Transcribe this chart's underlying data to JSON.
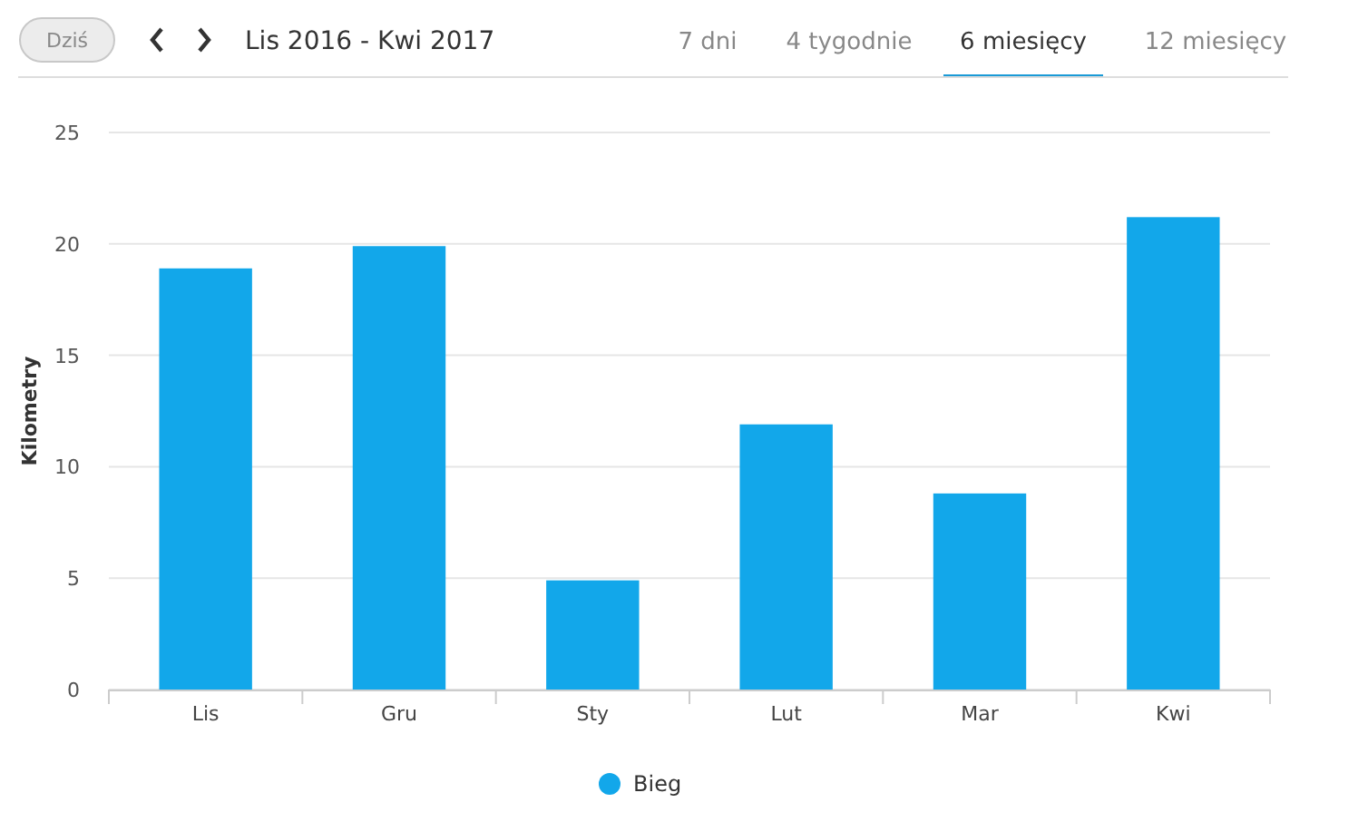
{
  "chart_data": {
    "type": "bar",
    "title": "Lis 2016 - Kwi 2017",
    "ylabel": "Kilometry",
    "categories": [
      "Lis",
      "Gru",
      "Sty",
      "Lut",
      "Mar",
      "Kwi"
    ],
    "series": [
      {
        "name": "Bieg",
        "color": "#12a7ea",
        "values": [
          18.9,
          19.9,
          4.9,
          11.9,
          8.8,
          21.2
        ]
      }
    ],
    "ylim": [
      0,
      25
    ],
    "yticks": [
      0,
      5,
      10,
      15,
      20,
      25
    ],
    "grid": "y",
    "legend": "bottom",
    "annotations": [
      "Dziś",
      "7 dni",
      "4 tygodnie",
      "6 miesięcy",
      "12 miesięcy"
    ]
  }
}
